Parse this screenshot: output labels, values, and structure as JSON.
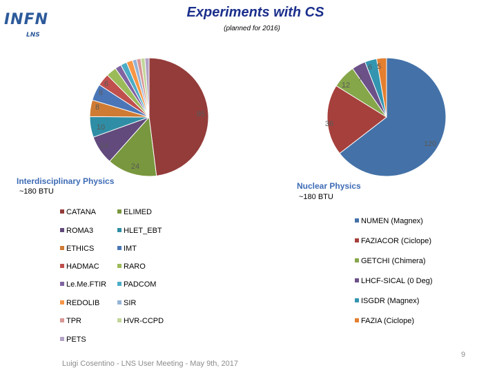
{
  "logo": {
    "main": "INFN",
    "sub": "LNS"
  },
  "title": "Experiments with CS",
  "subtitle": "(planned for 2016)",
  "footer": "Luigi Cosentino - LNS User Meeting - May 9th, 2017",
  "page_number": "9",
  "chart_data": [
    {
      "type": "pie",
      "title": "Interdisciplinary Physics",
      "subtitle": "~180 BTU",
      "legend_placement": "bottom",
      "slices": [
        {
          "name": "CATANA",
          "value": 85,
          "color": "#943c3a"
        },
        {
          "name": "ELIMED",
          "value": 24,
          "color": "#79973e"
        },
        {
          "name": "ROMA3",
          "value": 14,
          "color": "#624a7c"
        },
        {
          "name": "HLET_EBT",
          "value": 10,
          "color": "#2f8ea5"
        },
        {
          "name": "ETHICS",
          "value": 8,
          "color": "#cf7b34"
        },
        {
          "name": "IMT",
          "value": 8,
          "color": "#4a76b8"
        },
        {
          "name": "HADMAC",
          "value": 6,
          "color": "#c0504d"
        },
        {
          "name": "RARO",
          "value": 5,
          "color": "#9bbb59"
        },
        {
          "name": "Le.Me.FTIR",
          "value": 3,
          "color": "#8064a2"
        },
        {
          "name": "PADCOM",
          "value": 3,
          "color": "#4bacc6"
        },
        {
          "name": "REDOLIB",
          "value": 3,
          "color": "#f79646"
        },
        {
          "name": "SIR",
          "value": 2,
          "color": "#95b3d7"
        },
        {
          "name": "TPR",
          "value": 2,
          "color": "#d99694"
        },
        {
          "name": "HVR-CCPD",
          "value": 2,
          "color": "#c3d69b"
        },
        {
          "name": "PETS",
          "value": 2,
          "color": "#b3a2c7"
        }
      ],
      "labeled_values": [
        "85",
        "24",
        "14",
        "10",
        "8",
        "8",
        "6"
      ]
    },
    {
      "type": "pie",
      "title": "Nuclear Physics",
      "subtitle": "~180 BTU",
      "legend_placement": "right",
      "slices": [
        {
          "name": "NUMEN (Magnex)",
          "value": 120,
          "color": "#4472a8"
        },
        {
          "name": "FAZIACOR (Ciclope)",
          "value": 36,
          "color": "#a6403c"
        },
        {
          "name": "GETCHI (Chimera)",
          "value": 12,
          "color": "#86a64a"
        },
        {
          "name": "LHCF-SICAL (0 Deg)",
          "value": 7,
          "color": "#6c5189"
        },
        {
          "name": "ISGDR (Magnex)",
          "value": 6,
          "color": "#3395b0"
        },
        {
          "name": "FAZIA (Ciclope)",
          "value": 5,
          "color": "#e47f30"
        }
      ],
      "labeled_values": [
        "120",
        "36",
        "12",
        "7",
        "6",
        "5"
      ]
    }
  ]
}
